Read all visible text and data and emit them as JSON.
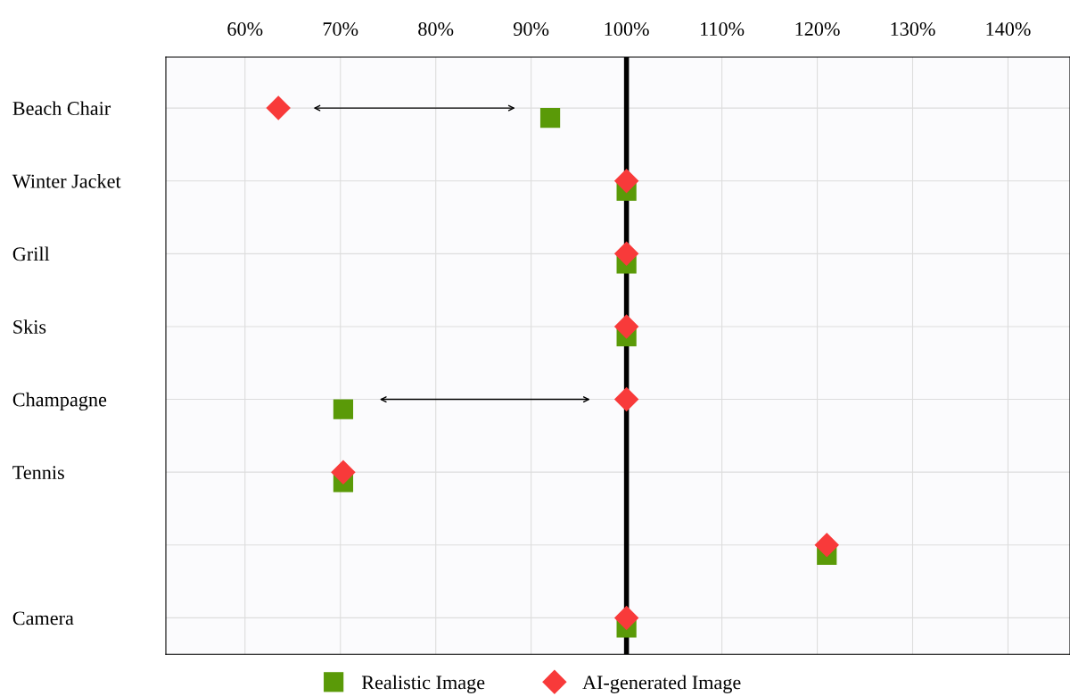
{
  "chart_data": {
    "type": "scatter",
    "categories": [
      "Beach Chair",
      "Winter Jacket",
      "Grill",
      "Skis",
      "Champagne",
      "Tennis",
      null,
      "Camera"
    ],
    "series": [
      {
        "name": "Realistic Image",
        "color": "#5a9a08",
        "marker": "square",
        "values": [
          92,
          100,
          100,
          100,
          70.3,
          70.3,
          121,
          100
        ]
      },
      {
        "name": "AI-generated Image",
        "color": "#f83a3a",
        "marker": "diamond",
        "values": [
          63.5,
          100,
          100,
          100,
          100,
          70.3,
          121,
          100
        ]
      }
    ],
    "orientation": "horizontal",
    "xlim": [
      51.7,
      146.5
    ],
    "xticks": [
      {
        "value": 60,
        "label": "60%"
      },
      {
        "value": 70,
        "label": "70%"
      },
      {
        "value": 80,
        "label": "80%"
      },
      {
        "value": 90,
        "label": "90%"
      },
      {
        "value": 100,
        "label": "100%"
      },
      {
        "value": 110,
        "label": "110%"
      },
      {
        "value": 120,
        "label": "120%"
      },
      {
        "value": 130,
        "label": "130%"
      },
      {
        "value": 140,
        "label": "140%"
      }
    ],
    "ref_lines": [
      {
        "axis": "x",
        "value": 100,
        "color": "#000000"
      }
    ],
    "grid": true,
    "legend": "bottom"
  }
}
